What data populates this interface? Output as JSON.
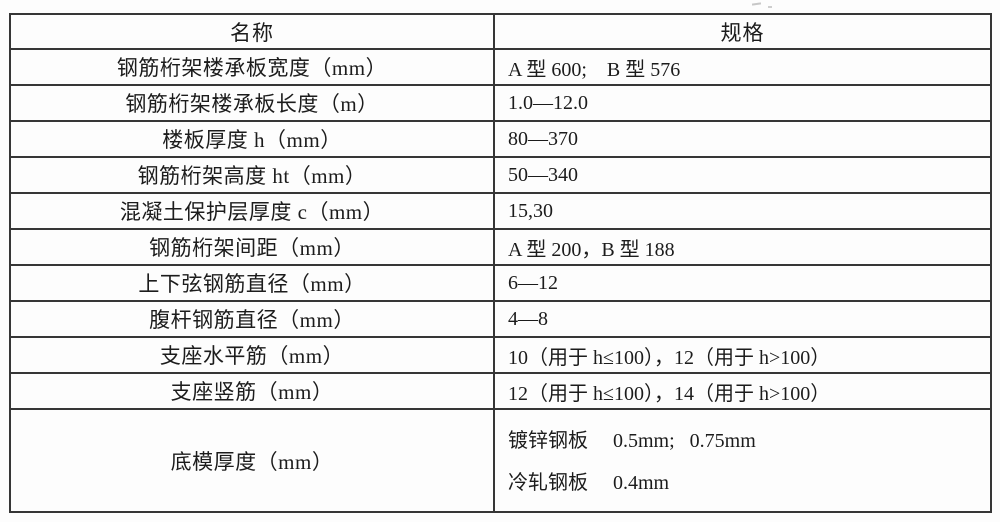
{
  "artifact": {
    "description": "faint-scan-smudge"
  },
  "colors": {
    "border_outer": "#222222",
    "border_inner": "#363636",
    "text": "#1c1c1c",
    "background": "#fdfdfd"
  },
  "table": {
    "header": {
      "name": "名称",
      "spec": "规格"
    },
    "rows": [
      {
        "name": "钢筋桁架楼承板宽度（mm）",
        "spec": "A 型 600;　B 型 576"
      },
      {
        "name": "钢筋桁架楼承板长度（m）",
        "spec": "1.0—12.0"
      },
      {
        "name": "楼板厚度 h（mm）",
        "spec": "80—370"
      },
      {
        "name": "钢筋桁架高度 ht（mm）",
        "spec": "50—340"
      },
      {
        "name": "混凝土保护层厚度 c（mm）",
        "spec": "15,30"
      },
      {
        "name": "钢筋桁架间距（mm）",
        "spec": "A 型 200，B 型 188"
      },
      {
        "name": "上下弦钢筋直径（mm）",
        "spec": "6—12"
      },
      {
        "name": "腹杆钢筋直径（mm）",
        "spec": "4—8"
      },
      {
        "name": "支座水平筋（mm）",
        "spec": "10（用于 h≤100），12（用于 h>100）"
      },
      {
        "name": "支座竖筋（mm）",
        "spec": "12（用于 h≤100），14（用于 h>100）"
      },
      {
        "name": "底模厚度（mm）",
        "spec": "镀锌钢板　 0.5mm;  0.75mm\n冷轧钢板　 0.4mm"
      }
    ]
  }
}
